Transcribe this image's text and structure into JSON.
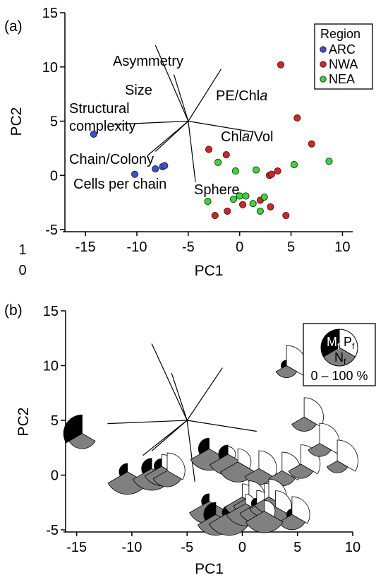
{
  "chart_data": [
    {
      "panel": "(a)",
      "type": "scatter",
      "xlabel": "PC1",
      "ylabel": "PC2",
      "xlim": [
        -17,
        11
      ],
      "ylim": [
        -5,
        15
      ],
      "xticks": [
        "-15",
        "-10",
        "-5",
        "0",
        "5",
        "10"
      ],
      "yticks": [
        "-5",
        "0",
        "5",
        "10",
        "15"
      ],
      "stray_tick_labels": [
        "1",
        "0"
      ],
      "legend": {
        "title": "Region",
        "position": "top-right"
      },
      "series": [
        {
          "name": "ARC",
          "color": "#3a4fd8",
          "points": [
            [
              -14.2,
              3.8
            ],
            [
              -10.2,
              0.1
            ],
            [
              -8.2,
              0.6
            ],
            [
              -7.5,
              0.8
            ],
            [
              -7.3,
              0.9
            ]
          ]
        },
        {
          "name": "NWA",
          "color": "#e0201b",
          "points": [
            [
              4.0,
              10.2
            ],
            [
              5.6,
              5.3
            ],
            [
              7.0,
              2.9
            ],
            [
              -3.0,
              2.4
            ],
            [
              -1.3,
              1.9
            ],
            [
              3.7,
              0.4
            ],
            [
              2.9,
              0.0
            ],
            [
              3.1,
              0.1
            ],
            [
              0.3,
              -2.7
            ],
            [
              2.0,
              -2.3
            ],
            [
              3.0,
              -2.9
            ],
            [
              -1.2,
              -3.3
            ],
            [
              -2.4,
              -3.7
            ],
            [
              4.5,
              -3.7
            ]
          ]
        },
        {
          "name": "NEA",
          "color": "#2ee02c",
          "points": [
            [
              8.7,
              1.3
            ],
            [
              5.3,
              1.0
            ],
            [
              -2.1,
              1.2
            ],
            [
              -0.4,
              0.4
            ],
            [
              1.6,
              0.5
            ],
            [
              0.0,
              -1.9
            ],
            [
              0.6,
              -1.9
            ],
            [
              -0.6,
              -2.2
            ],
            [
              2.4,
              -2.0
            ],
            [
              1.3,
              -2.6
            ],
            [
              -3.1,
              -2.4
            ],
            [
              2.0,
              -3.3
            ]
          ]
        }
      ],
      "loadings": [
        {
          "label": "Asymmetry",
          "end": [
            -8.2,
            12.0
          ]
        },
        {
          "label": "Size",
          "end": [
            -6.4,
            9.3
          ]
        },
        {
          "label": "PE/Chla",
          "end": [
            -1.8,
            9.8
          ]
        },
        {
          "label": "Structural complexity",
          "end": [
            -12.2,
            4.7
          ]
        },
        {
          "label": "Chla/Vol",
          "end": [
            1.3,
            4.0
          ]
        },
        {
          "label": "Chain/Colony",
          "end": [
            -8.2,
            2.2
          ]
        },
        {
          "label": "Cells per chain",
          "end": [
            -9.0,
            1.8
          ]
        },
        {
          "label": "Sphere",
          "end": [
            -4.3,
            -0.6
          ]
        }
      ],
      "loading_origin": [
        -5.0,
        5.0
      ]
    },
    {
      "panel": "(b)",
      "type": "scatter",
      "xlabel": "PC1",
      "ylabel": "PC2",
      "xlim": [
        -16,
        10
      ],
      "ylim": [
        -5,
        15
      ],
      "xticks": [
        "-15",
        "-10",
        "-5",
        "0",
        "5",
        "10"
      ],
      "yticks": [
        "-5",
        "0",
        "5",
        "10",
        "15"
      ],
      "legend": {
        "position": "top-right",
        "slices": [
          {
            "label_main": "M",
            "label_sub": "f",
            "color": "#000000"
          },
          {
            "label_main": "P",
            "label_sub": "f",
            "color": "#ffffff"
          },
          {
            "label_main": "N",
            "label_sub": "f",
            "color": "#808080"
          }
        ],
        "range": "0 – 100 %"
      },
      "glyphs": [
        {
          "at": [
            -14.5,
            3.8
          ],
          "M": 0.6,
          "P": 0.0,
          "N": 0.4
        },
        {
          "at": [
            -10.4,
            0.3
          ],
          "M": 0.12,
          "P": 0.0,
          "N": 0.88
        },
        {
          "at": [
            -8.2,
            0.6
          ],
          "M": 0.18,
          "P": 0.0,
          "N": 0.82
        },
        {
          "at": [
            -7.3,
            0.8
          ],
          "M": 0.1,
          "P": 0.25,
          "N": 0.65
        },
        {
          "at": [
            -6.8,
            0.4
          ],
          "M": 0.0,
          "P": 0.55,
          "N": 0.45
        },
        {
          "at": [
            -3.0,
            2.4
          ],
          "M": 0.2,
          "P": 0.0,
          "N": 0.8
        },
        {
          "at": [
            -1.3,
            1.9
          ],
          "M": 0.15,
          "P": 0.1,
          "N": 0.75
        },
        {
          "at": [
            -0.4,
            1.2
          ],
          "M": 0.0,
          "P": 0.3,
          "N": 0.7
        },
        {
          "at": [
            1.5,
            0.6
          ],
          "M": 0.0,
          "P": 0.55,
          "N": 0.45
        },
        {
          "at": [
            3.6,
            0.4
          ],
          "M": 0.0,
          "P": 0.6,
          "N": 0.4
        },
        {
          "at": [
            5.3,
            1.0
          ],
          "M": 0.0,
          "P": 0.65,
          "N": 0.35
        },
        {
          "at": [
            4.0,
            10.0
          ],
          "M": 0.05,
          "P": 0.7,
          "N": 0.25
        },
        {
          "at": [
            5.6,
            5.3
          ],
          "M": 0.0,
          "P": 0.65,
          "N": 0.35
        },
        {
          "at": [
            7.0,
            2.9
          ],
          "M": 0.0,
          "P": 0.7,
          "N": 0.3
        },
        {
          "at": [
            8.6,
            1.3
          ],
          "M": 0.0,
          "P": 0.75,
          "N": 0.25
        },
        {
          "at": [
            -3.0,
            -2.4
          ],
          "M": 0.1,
          "P": 0.0,
          "N": 0.9
        },
        {
          "at": [
            -2.4,
            -3.6
          ],
          "M": 0.25,
          "P": 0.0,
          "N": 0.75
        },
        {
          "at": [
            -1.2,
            -3.4
          ],
          "M": 0.08,
          "P": 0.0,
          "N": 0.92
        },
        {
          "at": [
            0.0,
            -2.0
          ],
          "M": 0.0,
          "P": 0.3,
          "N": 0.7
        },
        {
          "at": [
            0.6,
            -2.0
          ],
          "M": 0.0,
          "P": 0.45,
          "N": 0.55
        },
        {
          "at": [
            0.3,
            -2.6
          ],
          "M": 0.0,
          "P": 0.15,
          "N": 0.85
        },
        {
          "at": [
            1.3,
            -2.6
          ],
          "M": 0.05,
          "P": 0.3,
          "N": 0.65
        },
        {
          "at": [
            2.0,
            -2.3
          ],
          "M": 0.0,
          "P": 0.5,
          "N": 0.5
        },
        {
          "at": [
            2.4,
            -2.0
          ],
          "M": 0.0,
          "P": 0.55,
          "N": 0.45
        },
        {
          "at": [
            3.0,
            -2.9
          ],
          "M": 0.0,
          "P": 0.45,
          "N": 0.55
        },
        {
          "at": [
            4.5,
            -3.6
          ],
          "M": 0.05,
          "P": 0.55,
          "N": 0.4
        },
        {
          "at": [
            2.0,
            -3.3
          ],
          "M": 0.0,
          "P": 0.2,
          "N": 0.8
        }
      ],
      "loadings": [
        {
          "end": [
            -8.2,
            12.0
          ]
        },
        {
          "end": [
            -6.4,
            9.3
          ]
        },
        {
          "end": [
            -1.8,
            9.8
          ]
        },
        {
          "end": [
            -12.2,
            4.7
          ]
        },
        {
          "end": [
            1.3,
            4.0
          ]
        },
        {
          "end": [
            -8.2,
            2.2
          ]
        },
        {
          "end": [
            -9.0,
            1.8
          ]
        },
        {
          "end": [
            -4.3,
            -0.6
          ]
        }
      ],
      "loading_origin": [
        -5.0,
        5.0
      ]
    }
  ]
}
